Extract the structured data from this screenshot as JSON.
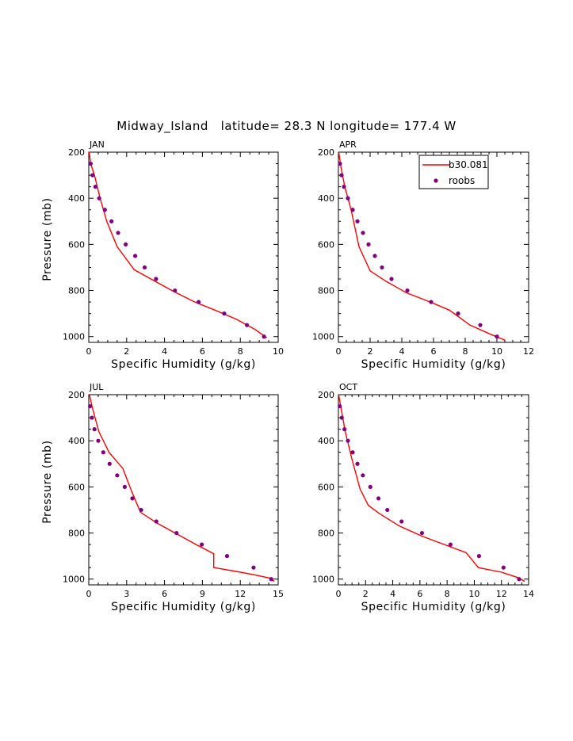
{
  "title": "Midway_Island   latitude= 28.3 N longitude= 177.4 W",
  "colors": {
    "model": "#ff0000",
    "obs": "#800080",
    "axis": "#000000"
  },
  "legend": {
    "model_label": "b30.081",
    "obs_label": "roobs",
    "placement": "top-right of APR panel"
  },
  "chart_data": [
    {
      "type": "line",
      "panel_label": "JAN",
      "xlabel": "Specific Humidity (g/kg)",
      "ylabel": "Pressure (mb)",
      "xlim": [
        0,
        10
      ],
      "ylim": [
        1025,
        200
      ],
      "xticks": [
        0,
        2,
        4,
        6,
        8,
        10
      ],
      "yticks": [
        200,
        400,
        600,
        800,
        1000
      ],
      "series": [
        {
          "name": "b30.081",
          "x": [
            0.02,
            0.1,
            0.3,
            0.6,
            0.95,
            1.5,
            2.4,
            3.5,
            4.5,
            5.6,
            6.8,
            7.8,
            8.8,
            9.4
          ],
          "y": [
            200,
            250,
            300,
            400,
            500,
            610,
            710,
            760,
            805,
            850,
            890,
            925,
            970,
            1005
          ]
        },
        {
          "name": "roobs",
          "x": [
            0.1,
            0.2,
            0.35,
            0.55,
            0.85,
            1.2,
            1.55,
            1.95,
            2.45,
            2.95,
            3.55,
            4.55,
            5.8,
            7.15,
            8.35,
            9.25
          ],
          "y": [
            250,
            300,
            350,
            400,
            450,
            500,
            550,
            600,
            650,
            700,
            750,
            800,
            850,
            900,
            950,
            1000
          ]
        }
      ]
    },
    {
      "type": "line",
      "panel_label": "APR",
      "xlabel": "Specific Humidity (g/kg)",
      "ylabel": "",
      "xlim": [
        0,
        12
      ],
      "ylim": [
        1025,
        200
      ],
      "xticks": [
        0,
        2,
        4,
        6,
        8,
        10,
        12
      ],
      "yticks": [
        200,
        400,
        600,
        800,
        1000
      ],
      "series": [
        {
          "name": "b30.081",
          "x": [
            0.02,
            0.15,
            0.4,
            0.8,
            1.3,
            2.0,
            3.0,
            4.3,
            5.8,
            7.0,
            8.3,
            9.6,
            10.5
          ],
          "y": [
            200,
            260,
            350,
            450,
            610,
            715,
            760,
            810,
            850,
            885,
            950,
            990,
            1015
          ]
        },
        {
          "name": "roobs",
          "x": [
            0.1,
            0.2,
            0.35,
            0.6,
            0.9,
            1.2,
            1.55,
            1.9,
            2.3,
            2.75,
            3.35,
            4.35,
            5.85,
            7.55,
            8.95,
            10.0
          ],
          "y": [
            250,
            300,
            350,
            400,
            450,
            500,
            550,
            600,
            650,
            700,
            750,
            800,
            850,
            900,
            950,
            1000
          ]
        }
      ]
    },
    {
      "type": "line",
      "panel_label": "JUL",
      "xlabel": "Specific Humidity (g/kg)",
      "ylabel": "Pressure (mb)",
      "xlim": [
        0,
        15
      ],
      "ylim": [
        1025,
        200
      ],
      "xticks": [
        0,
        3,
        6,
        9,
        12,
        15
      ],
      "yticks": [
        200,
        400,
        600,
        800,
        1000
      ],
      "series": [
        {
          "name": "b30.081",
          "x": [
            0.05,
            0.3,
            0.8,
            1.6,
            2.7,
            3.4,
            4.1,
            5.5,
            7.0,
            8.5,
            9.9,
            9.9,
            11.5,
            13.0,
            14.3,
            14.7
          ],
          "y": [
            200,
            260,
            360,
            450,
            520,
            620,
            710,
            760,
            805,
            850,
            890,
            950,
            965,
            980,
            995,
            1010
          ]
        },
        {
          "name": "roobs",
          "x": [
            0.1,
            0.25,
            0.45,
            0.75,
            1.15,
            1.65,
            2.25,
            2.85,
            3.45,
            4.15,
            5.35,
            6.95,
            8.95,
            10.95,
            13.05,
            14.45
          ],
          "y": [
            250,
            300,
            350,
            400,
            450,
            500,
            550,
            600,
            650,
            700,
            750,
            800,
            850,
            900,
            950,
            1000
          ]
        }
      ]
    },
    {
      "type": "line",
      "panel_label": "OCT",
      "xlabel": "Specific Humidity (g/kg)",
      "ylabel": "",
      "xlim": [
        0,
        14
      ],
      "ylim": [
        1025,
        200
      ],
      "xticks": [
        0,
        2,
        4,
        6,
        8,
        10,
        12,
        14
      ],
      "yticks": [
        200,
        400,
        600,
        800,
        1000
      ],
      "series": [
        {
          "name": "b30.081",
          "x": [
            0.02,
            0.2,
            0.5,
            1.0,
            1.6,
            2.2,
            3.0,
            4.5,
            6.2,
            7.8,
            9.4,
            10.3,
            12.0,
            13.3,
            13.7
          ],
          "y": [
            200,
            260,
            360,
            480,
            610,
            680,
            715,
            770,
            815,
            850,
            885,
            950,
            970,
            995,
            1010
          ]
        },
        {
          "name": "roobs",
          "x": [
            0.1,
            0.25,
            0.45,
            0.7,
            1.05,
            1.4,
            1.8,
            2.35,
            2.95,
            3.6,
            4.65,
            6.15,
            8.25,
            10.35,
            12.15,
            13.3
          ],
          "y": [
            250,
            300,
            350,
            400,
            450,
            500,
            550,
            600,
            650,
            700,
            750,
            800,
            850,
            900,
            950,
            1000
          ]
        }
      ]
    }
  ]
}
